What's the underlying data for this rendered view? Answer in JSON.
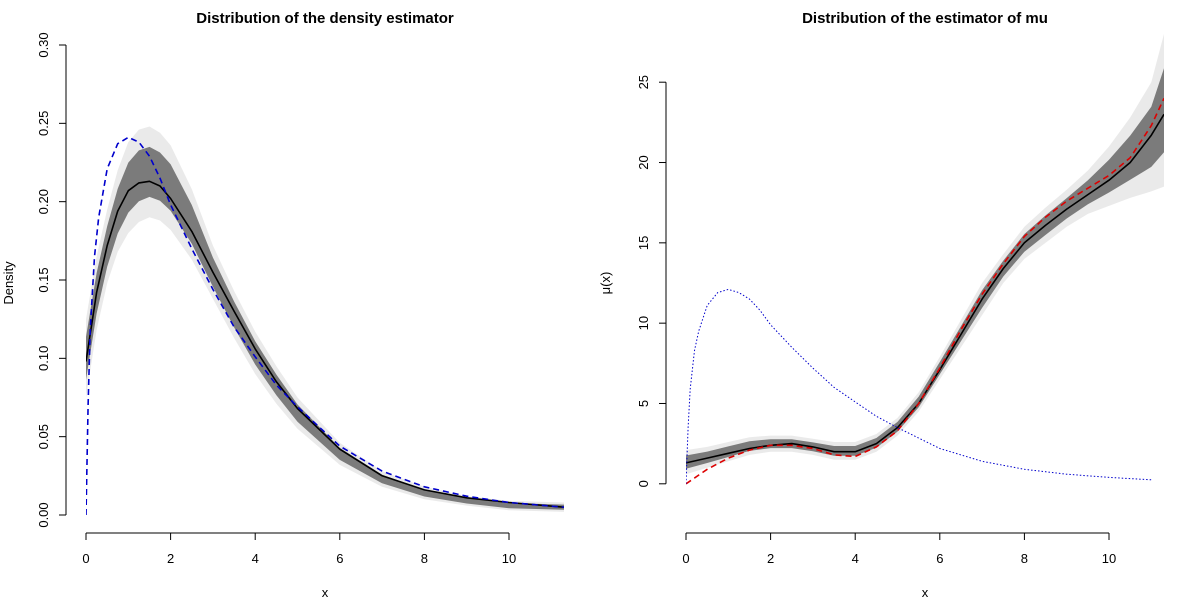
{
  "chart_data": [
    {
      "type": "line",
      "title": "Distribution of the density estimator",
      "xlabel": "x",
      "ylabel": "Density",
      "xlim": [
        0,
        11.3
      ],
      "ylim": [
        0,
        0.3
      ],
      "xticks": [
        "0",
        "2",
        "4",
        "6",
        "8",
        "10"
      ],
      "yticks": [
        "0.00",
        "0.05",
        "0.10",
        "0.15",
        "0.20",
        "0.25",
        "0.30"
      ],
      "legend": "none",
      "grid": false,
      "series": [
        {
          "style": "gray band (many simulated estimates)",
          "color": "#555555",
          "x": [
            0,
            0.25,
            0.5,
            0.75,
            1,
            1.25,
            1.5,
            1.75,
            2,
            2.5,
            3,
            3.5,
            4,
            4.5,
            5,
            6,
            7,
            8,
            9,
            10,
            11.3
          ],
          "lower": [
            0.075,
            0.118,
            0.148,
            0.168,
            0.18,
            0.187,
            0.19,
            0.188,
            0.182,
            0.163,
            0.138,
            0.113,
            0.09,
            0.071,
            0.055,
            0.032,
            0.018,
            0.01,
            0.006,
            0.003,
            0.002
          ],
          "upper": [
            0.125,
            0.165,
            0.195,
            0.22,
            0.238,
            0.246,
            0.248,
            0.244,
            0.236,
            0.208,
            0.172,
            0.143,
            0.117,
            0.095,
            0.075,
            0.046,
            0.028,
            0.018,
            0.012,
            0.009,
            0.008
          ]
        },
        {
          "style": "solid",
          "color": "#000000",
          "x": [
            0,
            0.25,
            0.5,
            0.75,
            1,
            1.25,
            1.5,
            1.75,
            2,
            2.5,
            3,
            3.5,
            4,
            4.5,
            5,
            6,
            7,
            8,
            9,
            10,
            11.3
          ],
          "y": [
            0.098,
            0.142,
            0.172,
            0.194,
            0.207,
            0.212,
            0.213,
            0.21,
            0.202,
            0.181,
            0.155,
            0.13,
            0.106,
            0.085,
            0.068,
            0.042,
            0.025,
            0.016,
            0.011,
            0.008,
            0.005
          ]
        },
        {
          "style": "dashed",
          "color": "#0000cc",
          "x": [
            0,
            0.05,
            0.1,
            0.2,
            0.3,
            0.5,
            0.75,
            1,
            1.25,
            1.5,
            1.75,
            2,
            2.5,
            3,
            3.5,
            4,
            4.5,
            5,
            6,
            7,
            8,
            9,
            10,
            11.3
          ],
          "y": [
            0,
            0.07,
            0.118,
            0.165,
            0.19,
            0.221,
            0.237,
            0.241,
            0.238,
            0.229,
            0.215,
            0.198,
            0.17,
            0.144,
            0.12,
            0.101,
            0.083,
            0.069,
            0.044,
            0.028,
            0.018,
            0.012,
            0.008,
            0.005
          ]
        }
      ]
    },
    {
      "type": "line",
      "title": "Distribution of the estimator of mu",
      "xlabel": "x",
      "ylabel": "μ(x)",
      "xlim": [
        0,
        11.3
      ],
      "ylim": [
        -3,
        28
      ],
      "xticks": [
        "0",
        "2",
        "4",
        "6",
        "8",
        "10"
      ],
      "yticks": [
        "0",
        "5",
        "10",
        "15",
        "20",
        "25"
      ],
      "legend": "none",
      "grid": false,
      "series": [
        {
          "style": "gray band (many simulated estimates)",
          "color": "#555555",
          "x": [
            0,
            0.5,
            1,
            1.5,
            2,
            2.5,
            3,
            3.5,
            4,
            4.5,
            5,
            5.5,
            6,
            6.5,
            7,
            7.5,
            8,
            8.5,
            9,
            9.5,
            10,
            10.5,
            11,
            11.3
          ],
          "lower": [
            0.6,
            1.0,
            1.4,
            1.8,
            2.0,
            2.0,
            1.8,
            1.5,
            1.5,
            2.0,
            3.0,
            4.5,
            6.5,
            8.5,
            10.5,
            12.5,
            14.0,
            15.0,
            16.0,
            16.8,
            17.3,
            17.8,
            18.2,
            18.5
          ],
          "upper": [
            2.1,
            2.3,
            2.6,
            2.9,
            3.0,
            3.0,
            2.8,
            2.6,
            2.6,
            3.1,
            4.1,
            5.7,
            7.9,
            10.2,
            12.5,
            14.3,
            16.0,
            17.2,
            18.3,
            19.5,
            21.0,
            22.8,
            25.0,
            28.0
          ]
        },
        {
          "style": "solid",
          "color": "#000000",
          "x": [
            0,
            0.5,
            1,
            1.5,
            2,
            2.5,
            3,
            3.5,
            4,
            4.5,
            5,
            5.5,
            6,
            6.5,
            7,
            7.5,
            8,
            8.5,
            9,
            9.5,
            10,
            10.5,
            11,
            11.3
          ],
          "y": [
            1.3,
            1.6,
            1.9,
            2.2,
            2.4,
            2.5,
            2.3,
            2.0,
            2.0,
            2.5,
            3.5,
            5.0,
            7.1,
            9.3,
            11.5,
            13.4,
            15.0,
            16.1,
            17.1,
            18.0,
            18.9,
            20.0,
            21.7,
            23.0
          ]
        },
        {
          "style": "dashed",
          "color": "#dd0000",
          "x": [
            0,
            0.5,
            1,
            1.5,
            2,
            2.5,
            3,
            3.5,
            4,
            4.5,
            5,
            5.5,
            6,
            6.5,
            7,
            7.5,
            8,
            8.5,
            9,
            9.5,
            10,
            10.5,
            11,
            11.3
          ],
          "y": [
            0.0,
            0.9,
            1.6,
            2.1,
            2.4,
            2.4,
            2.2,
            1.8,
            1.7,
            2.3,
            3.3,
            5.0,
            7.2,
            9.6,
            11.8,
            13.7,
            15.4,
            16.6,
            17.6,
            18.4,
            19.2,
            20.3,
            22.3,
            24.0
          ]
        },
        {
          "style": "dotted",
          "color": "#0000cc",
          "x": [
            0,
            0.05,
            0.1,
            0.2,
            0.3,
            0.5,
            0.75,
            1,
            1.25,
            1.5,
            1.75,
            2,
            2.5,
            3,
            3.5,
            4,
            4.5,
            5,
            6,
            7,
            8,
            9,
            10,
            11
          ],
          "y": [
            0,
            3.5,
            5.9,
            8.3,
            9.5,
            11.1,
            11.9,
            12.1,
            11.9,
            11.5,
            10.8,
            9.9,
            8.5,
            7.2,
            6.0,
            5.1,
            4.2,
            3.5,
            2.2,
            1.4,
            0.9,
            0.6,
            0.4,
            0.25
          ]
        }
      ]
    }
  ]
}
